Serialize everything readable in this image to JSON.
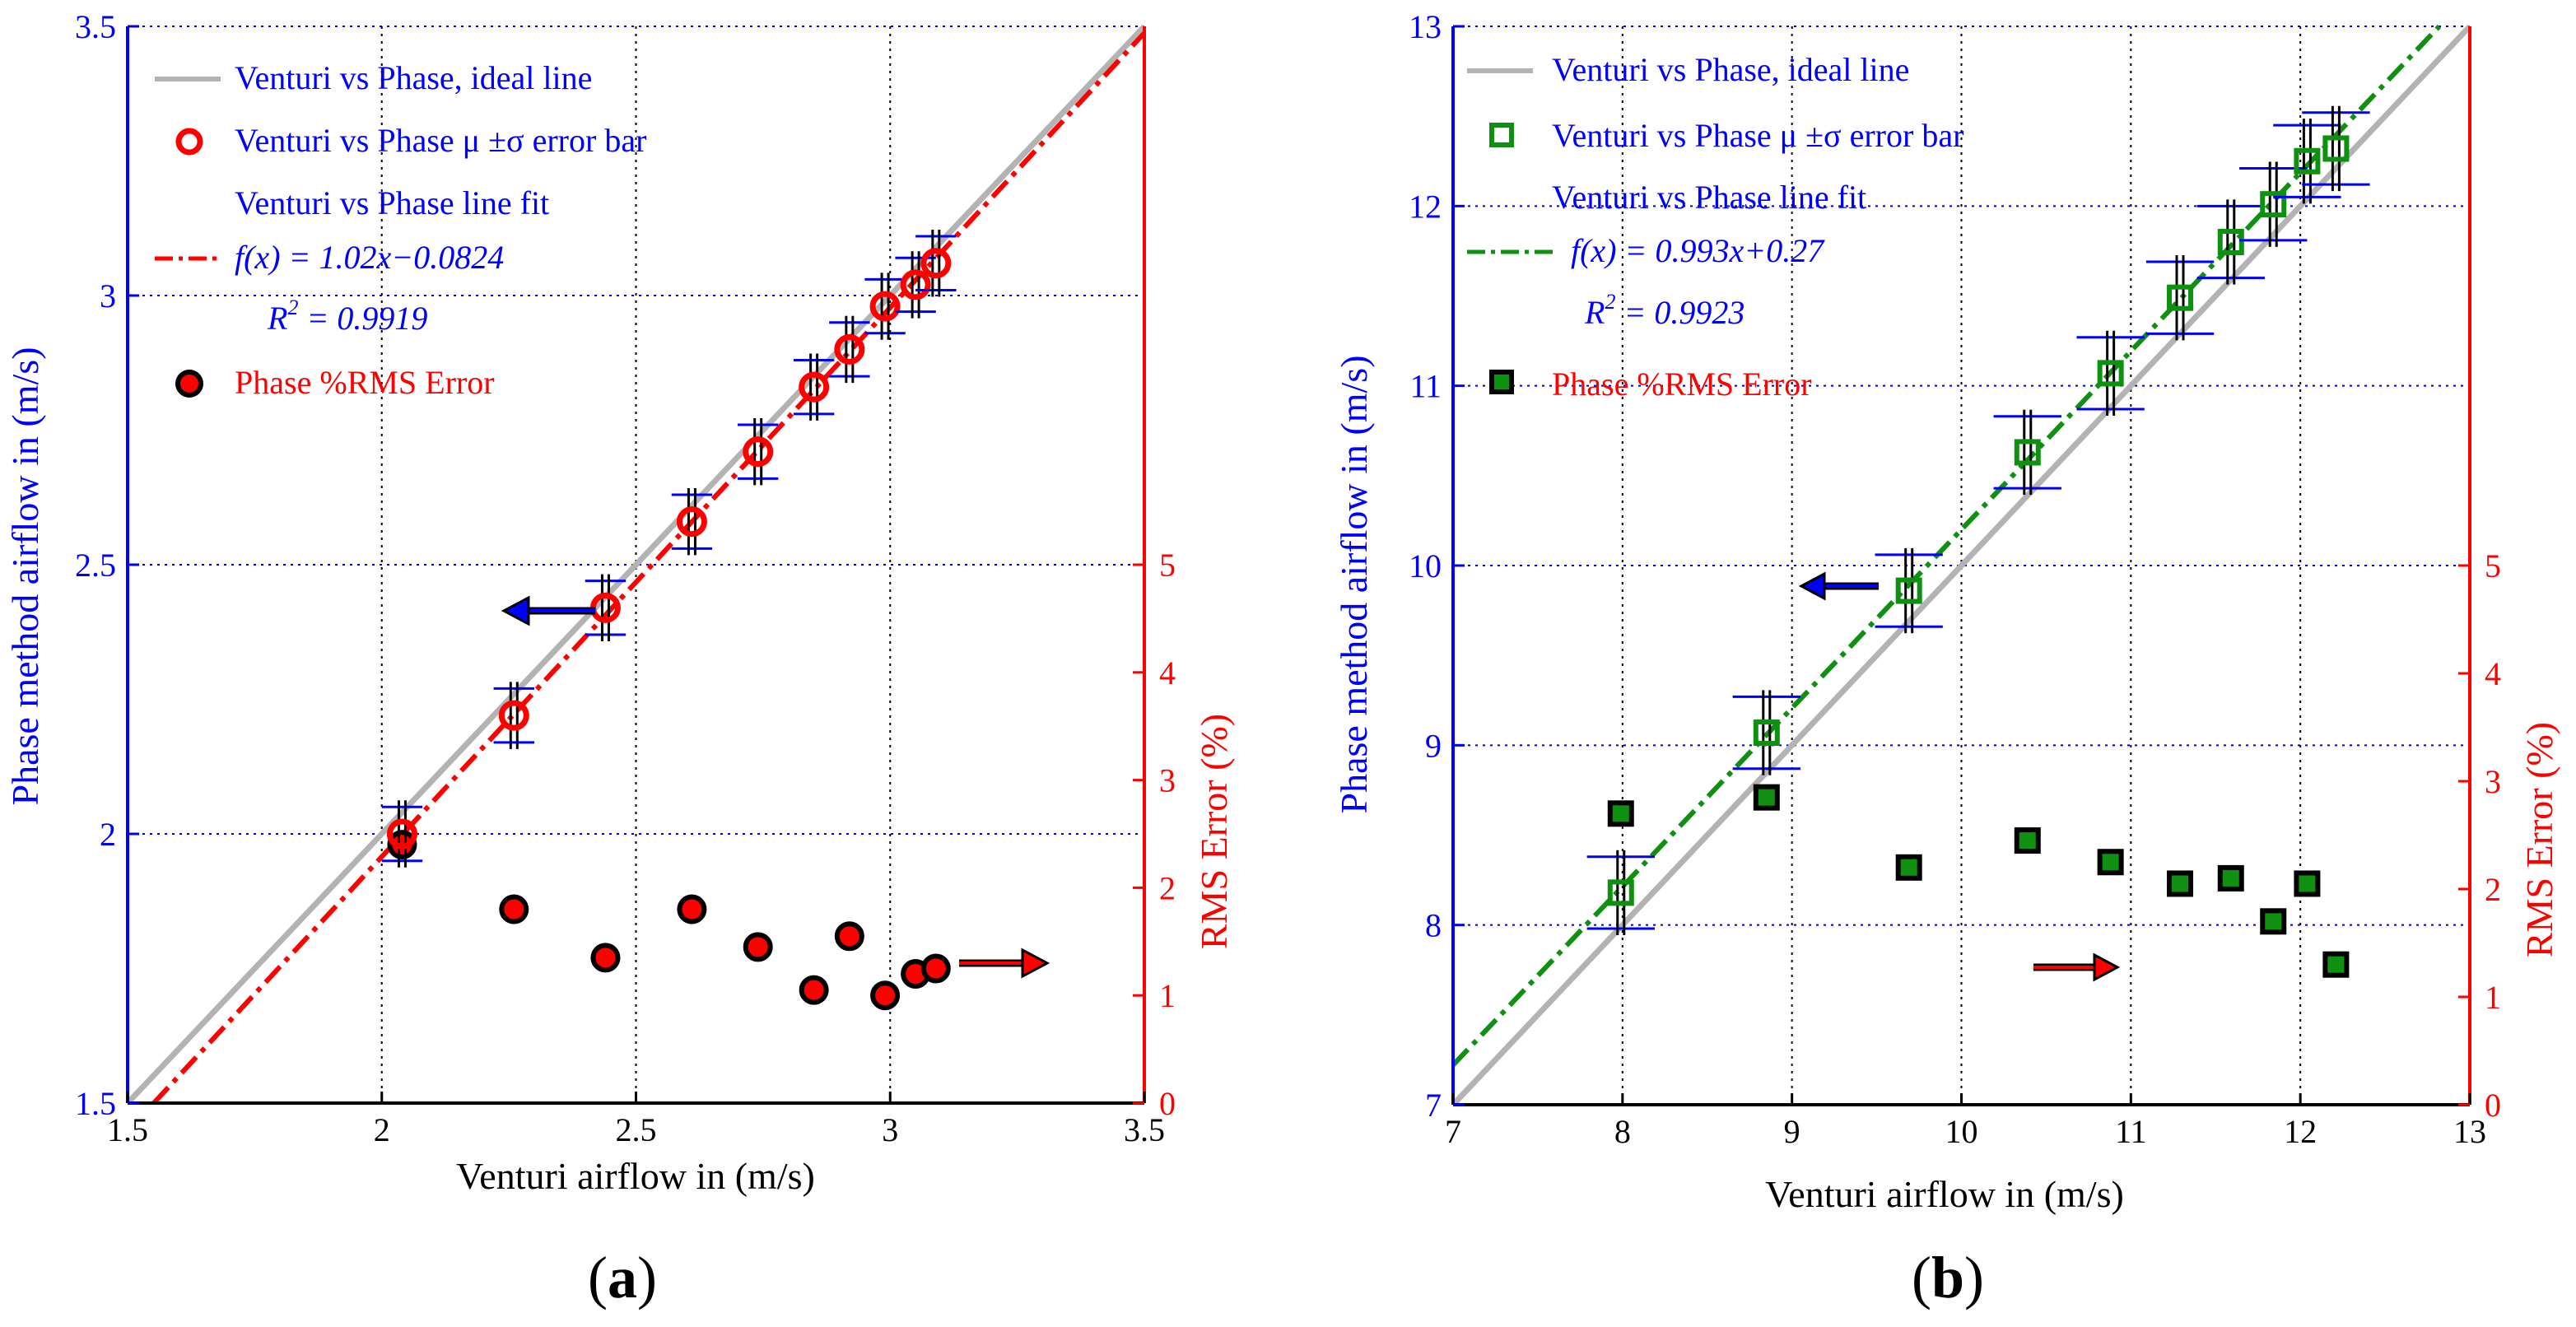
{
  "panels": [
    {
      "label": "(a)",
      "label_letter": "a",
      "xlabel": "Venturi airflow in (m/s)",
      "ylabel_left": "Phase method airflow in (m/s)",
      "ylabel_right": "RMS Error (%)",
      "x_ticks": [
        "1.5",
        "2",
        "2.5",
        "3",
        "3.5"
      ],
      "y_left_ticks": [
        "1.5",
        "2",
        "2.5",
        "3",
        "3.5"
      ],
      "y_right_ticks": [
        "0",
        "1",
        "2",
        "3",
        "4",
        "5"
      ],
      "legend": {
        "ideal": "Venturi vs Phase, ideal line",
        "errorbar": "Venturi vs Phase μ ±σ error bar",
        "fit_title": "Venturi vs Phase line fit",
        "fit_eq": "f(x) = 1.02x−0.0824",
        "r2_label": "R",
        "r2_sup": "2",
        "r2_value": " = 0.9919",
        "rms": "Phase %RMS Error"
      }
    },
    {
      "label": "(b)",
      "label_letter": "b",
      "xlabel": "Venturi airflow in (m/s)",
      "ylabel_left": "Phase method airflow in (m/s)",
      "ylabel_right": "RMS Error (%)",
      "x_ticks": [
        "7",
        "8",
        "9",
        "10",
        "11",
        "12",
        "13"
      ],
      "y_left_ticks": [
        "7",
        "8",
        "9",
        "10",
        "11",
        "12",
        "13"
      ],
      "y_right_ticks": [
        "0",
        "1",
        "2",
        "3",
        "4",
        "5"
      ],
      "legend": {
        "ideal": "Venturi vs Phase, ideal line",
        "errorbar": "Venturi vs Phase μ ±σ error bar",
        "fit_title": "Venturi vs Phase line fit",
        "fit_eq": "f(x) = 0.993x+0.27",
        "r2_label": "R",
        "r2_sup": "2",
        "r2_value": " = 0.9923",
        "rms": "Phase %RMS Error"
      }
    }
  ],
  "colors": {
    "left_axis": "#0000ff",
    "right_axis": "#ff0000",
    "ideal_line": "#b3b3b3",
    "fit_a": "#ff0000",
    "fit_b": "#109010",
    "marker_a": "#ff0000",
    "marker_b": "#109010",
    "error_bar_h": "#0000ff",
    "error_bar_v": "#000000",
    "rms_a_fill": "#ff0000",
    "rms_b_fill": "#109010",
    "grid": "#0000cd",
    "legend_text": "#0000ff",
    "legend_rms_text": "#ff0000"
  },
  "chart_data": [
    {
      "type": "scatter",
      "title": "(a)",
      "xlabel": "Venturi airflow in (m/s)",
      "ylabel": "Phase method airflow in (m/s)",
      "y2label": "RMS Error (%)",
      "xlim": [
        1.5,
        3.5
      ],
      "ylim": [
        1.5,
        3.5
      ],
      "y2lim": [
        0,
        10
      ],
      "y2_ticks": [
        0,
        1,
        2,
        3,
        4,
        5
      ],
      "grid": true,
      "legend_position": "top-left",
      "ideal_line": {
        "name": "Venturi vs Phase, ideal line",
        "slope": 1,
        "intercept": 0
      },
      "fit_line": {
        "name": "Venturi vs Phase line fit",
        "slope": 1.02,
        "intercept": -0.0824,
        "r2": 0.9919
      },
      "series": [
        {
          "name": "Venturi vs Phase μ ±σ error bar",
          "axis": "left",
          "x": [
            2.04,
            2.26,
            2.44,
            2.61,
            2.74,
            2.85,
            2.92,
            2.99,
            3.05,
            3.09
          ],
          "y": [
            2.0,
            2.22,
            2.42,
            2.58,
            2.71,
            2.83,
            2.9,
            2.98,
            3.02,
            3.06
          ],
          "x_err": [
            0.04,
            0.04,
            0.04,
            0.04,
            0.04,
            0.04,
            0.04,
            0.04,
            0.04,
            0.04
          ],
          "y_err": [
            0.05,
            0.05,
            0.05,
            0.05,
            0.05,
            0.05,
            0.05,
            0.05,
            0.05,
            0.05
          ]
        },
        {
          "name": "Phase %RMS Error",
          "axis": "right",
          "x": [
            2.04,
            2.26,
            2.44,
            2.61,
            2.74,
            2.85,
            2.92,
            2.99,
            3.05,
            3.09
          ],
          "y": [
            2.4,
            1.8,
            1.35,
            1.8,
            1.45,
            1.05,
            1.55,
            1.0,
            1.2,
            1.25
          ]
        }
      ]
    },
    {
      "type": "scatter",
      "title": "(b)",
      "xlabel": "Venturi airflow in (m/s)",
      "ylabel": "Phase method airflow in (m/s)",
      "y2label": "RMS Error (%)",
      "xlim": [
        7,
        13
      ],
      "ylim": [
        7,
        13
      ],
      "y2lim": [
        0,
        10
      ],
      "y2_ticks": [
        0,
        1,
        2,
        3,
        4,
        5
      ],
      "grid": true,
      "legend_position": "top-left",
      "ideal_line": {
        "name": "Venturi vs Phase, ideal line",
        "slope": 1,
        "intercept": 0
      },
      "fit_line": {
        "name": "Venturi vs Phase line fit",
        "slope": 0.993,
        "intercept": 0.27,
        "r2": 0.9923
      },
      "series": [
        {
          "name": "Venturi vs Phase μ ±σ error bar",
          "axis": "left",
          "x": [
            7.99,
            8.85,
            9.69,
            10.39,
            10.88,
            11.29,
            11.59,
            11.84,
            12.04,
            12.21
          ],
          "y": [
            8.18,
            9.07,
            9.86,
            10.63,
            11.07,
            11.49,
            11.8,
            12.01,
            12.25,
            12.32
          ],
          "x_err": [
            0.2,
            0.2,
            0.2,
            0.2,
            0.2,
            0.2,
            0.2,
            0.2,
            0.2,
            0.2
          ],
          "y_err": [
            0.2,
            0.2,
            0.2,
            0.2,
            0.2,
            0.2,
            0.2,
            0.2,
            0.2,
            0.2
          ]
        },
        {
          "name": "Phase %RMS Error",
          "axis": "right",
          "x": [
            7.99,
            8.85,
            9.69,
            10.39,
            10.88,
            11.29,
            11.59,
            11.84,
            12.04,
            12.21
          ],
          "y": [
            2.7,
            2.85,
            2.2,
            2.45,
            2.25,
            2.05,
            2.1,
            1.7,
            2.05,
            1.3
          ]
        }
      ]
    }
  ]
}
